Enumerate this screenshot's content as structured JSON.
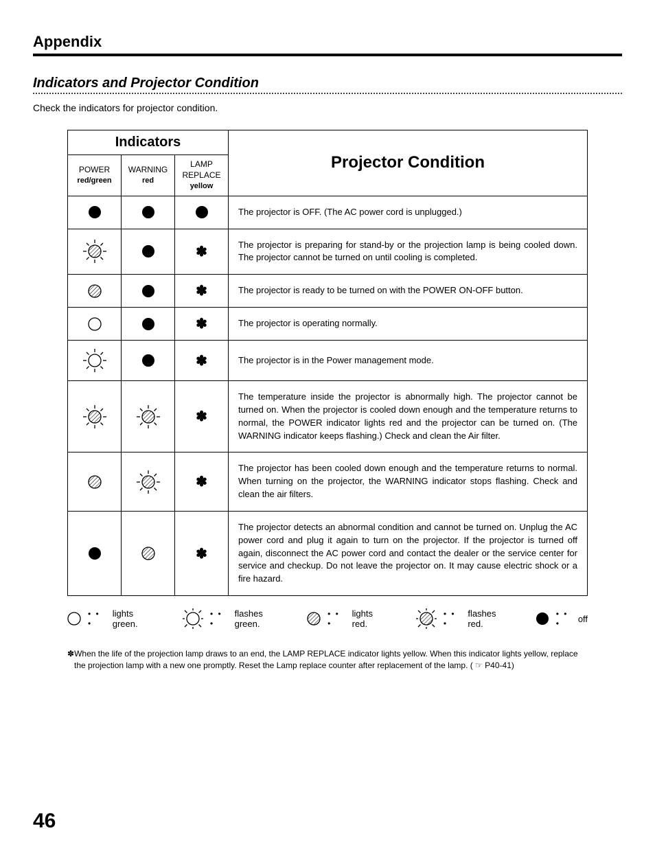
{
  "page": {
    "chapter": "Appendix",
    "section_title": "Indicators and Projector Condition",
    "intro": "Check the indicators for projector condition.",
    "page_number": "46"
  },
  "table": {
    "indicators_header": "Indicators",
    "condition_header": "Projector Condition",
    "cols": {
      "power_line1": "POWER",
      "power_line2": "red/green",
      "warning_line1": "WARNING",
      "warning_line2": "red",
      "lamp_line1": "LAMP",
      "lamp_line2": "REPLACE",
      "lamp_line3": "yellow"
    },
    "star_glyph": "✽",
    "rows": [
      {
        "power": "off",
        "warning": "off",
        "lamp": "off",
        "justify": false,
        "desc": "The projector is OFF.  (The AC power cord is unplugged.)"
      },
      {
        "power": "flash-red",
        "warning": "off",
        "lamp": "star",
        "justify": true,
        "desc": "The projector is preparing for stand-by or the projection lamp is being cooled down.  The projector cannot be turned on until cooling is completed."
      },
      {
        "power": "light-red",
        "warning": "off",
        "lamp": "star",
        "justify": false,
        "desc": "The projector is ready to be turned on with the POWER ON-OFF button."
      },
      {
        "power": "light-green",
        "warning": "off",
        "lamp": "star",
        "justify": false,
        "desc": "The projector is operating normally."
      },
      {
        "power": "flash-green",
        "warning": "off",
        "lamp": "star",
        "justify": false,
        "desc": "The projector is in the Power management mode."
      },
      {
        "power": "flash-red",
        "warning": "flash-red",
        "lamp": "star",
        "justify": true,
        "desc": "The temperature inside the projector is abnormally high.  The projector cannot be turned on.  When the projector is cooled down enough and the temperature returns to normal, the POWER indicator lights red and the projector can be turned on.  (The WARNING indicator keeps flashing.)  Check and clean the Air filter."
      },
      {
        "power": "light-red",
        "warning": "flash-red",
        "lamp": "star",
        "justify": true,
        "desc": "The projector has been cooled down enough and the temperature returns to normal.  When turning on the projector, the WARNING indicator stops flashing.  Check and clean the air filters."
      },
      {
        "power": "off",
        "warning": "light-red",
        "lamp": "star",
        "justify": true,
        "desc": "The projector detects an abnormal condition and cannot be turned on.  Unplug the AC power cord and plug it again to turn on the projector.  If the projector is turned off again, disconnect the AC power cord and contact the dealer or the service center for service and checkup.  Do not leave the projector on.  It may cause electric shock or a fire hazard."
      }
    ]
  },
  "legend": {
    "dots_glyph": "• • •",
    "items": [
      {
        "icon": "light-green",
        "label": "lights green."
      },
      {
        "icon": "flash-green",
        "label": "flashes green."
      },
      {
        "icon": "light-red",
        "label": "lights red."
      },
      {
        "icon": "flash-red",
        "label": "flashes red."
      },
      {
        "icon": "off",
        "label": "off"
      }
    ]
  },
  "footnote": {
    "prefix_glyph": "✽",
    "text": "When the life of the projection lamp draws to an end, the LAMP REPLACE indicator lights yellow.  When this indicator lights yellow, replace the projection lamp with a new one promptly.  Reset the Lamp replace counter after replacement of the lamp.  ( ☞  P40-41)"
  },
  "icons": {
    "colors": {
      "black": "#000000",
      "stroke": "#000000",
      "hatch": "#000000"
    },
    "circle_r": 9,
    "ray_len": 5,
    "ray_gap": 3
  }
}
